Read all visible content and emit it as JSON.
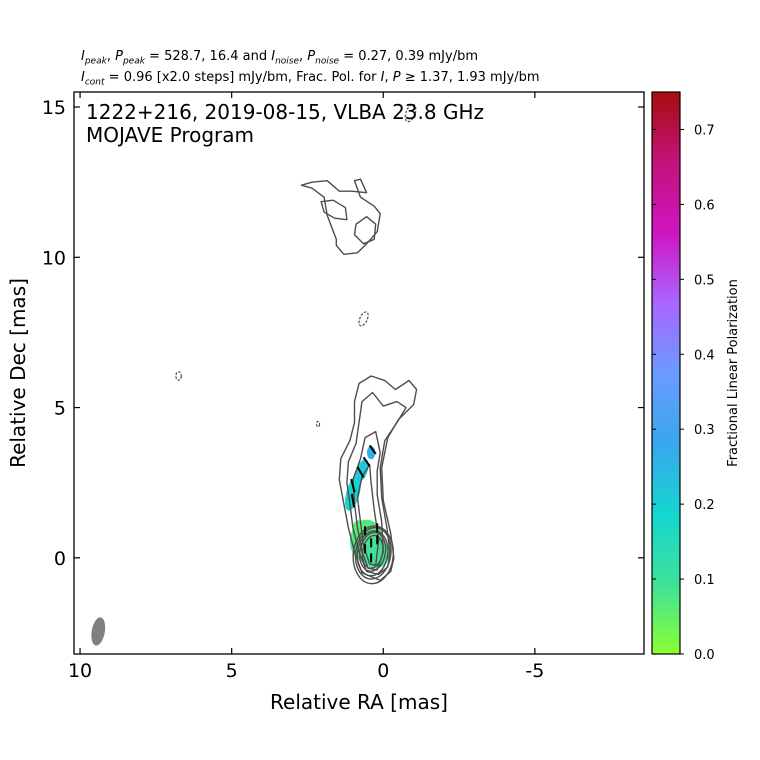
{
  "header": {
    "line1": {
      "i_peak_sym": "I",
      "i_peak_sub": "peak",
      "p_peak_sym": "P",
      "p_peak_sub": "peak",
      "peak_values": " = 528.7, 16.4 and ",
      "i_noise_sym": "I",
      "i_noise_sub": "noise",
      "p_noise_sym": "P",
      "p_noise_sub": "noise",
      "noise_values": " = 0.27, 0.39 mJy/bm"
    },
    "line2": {
      "i_cont_sym": "I",
      "i_cont_sub": "cont",
      "cont_text": " = 0.96 [x2.0 steps] mJy/bm, Frac. Pol. for ",
      "i_sym": "I",
      "p_sym": "P",
      "thresh_text": " ≥ 1.37, 1.93 mJy/bm"
    }
  },
  "chart_data": {
    "type": "contour",
    "title_line1": "1222+216, 2019-08-15, VLBA 23.8 GHz",
    "title_line2": "MOJAVE Program",
    "xlabel": "Relative RA [mas]",
    "ylabel": "Relative Dec [mas]",
    "xlim": [
      10.2,
      -8.6
    ],
    "ylim": [
      -3.2,
      15.5
    ],
    "x_ticks": [
      10,
      5,
      0,
      -5
    ],
    "x_tick_labels": [
      "10",
      "5",
      "0",
      "-5"
    ],
    "y_ticks": [
      0,
      5,
      10,
      15
    ],
    "y_tick_labels": [
      "0",
      "5",
      "10",
      "15"
    ],
    "colorbar": {
      "label": "Fractional Linear Polarization",
      "min": 0.0,
      "max": 0.75,
      "ticks": [
        0.0,
        0.1,
        0.2,
        0.3,
        0.4,
        0.5,
        0.6,
        0.7
      ],
      "tick_labels": [
        "0.0",
        "0.1",
        "0.2",
        "0.3",
        "0.4",
        "0.5",
        "0.6",
        "0.7"
      ],
      "colors": [
        "#8cff32",
        "#3de29a",
        "#14d6d0",
        "#3aa6ee",
        "#6a9bff",
        "#a966ff",
        "#cf15c0",
        "#c2137a",
        "#a80d0d"
      ]
    },
    "beam": {
      "x": 9.4,
      "y": -2.45,
      "major_mas": 0.75,
      "minor_mas": 0.3,
      "pa_deg": -10,
      "color": "#808080"
    },
    "contour_color": "#4d4d4d",
    "core_contours": [
      {
        "x": 0.35,
        "y": 0.2,
        "rx": 0.33,
        "ry": 0.55,
        "rot": 10
      },
      {
        "x": 0.35,
        "y": 0.2,
        "rx": 0.42,
        "ry": 0.65,
        "rot": 10
      },
      {
        "x": 0.35,
        "y": 0.15,
        "rx": 0.5,
        "ry": 0.75,
        "rot": 8
      },
      {
        "x": 0.33,
        "y": 0.15,
        "rx": 0.58,
        "ry": 0.86,
        "rot": 8
      },
      {
        "x": 0.33,
        "y": 0.1,
        "rx": 0.66,
        "ry": 0.96,
        "rot": 5
      }
    ],
    "jet_contours": [
      {
        "points": [
          [
            0.1,
            -0.75
          ],
          [
            -0.25,
            -0.45
          ],
          [
            -0.35,
            0.0
          ],
          [
            -0.25,
            0.8
          ],
          [
            0.0,
            1.9
          ],
          [
            0.05,
            3.0
          ],
          [
            -0.15,
            4.0
          ],
          [
            -0.5,
            4.6
          ],
          [
            -1.0,
            5.1
          ],
          [
            -1.1,
            5.6
          ],
          [
            -0.85,
            5.9
          ],
          [
            -0.4,
            5.6
          ],
          [
            -0.05,
            5.9
          ],
          [
            0.4,
            6.05
          ],
          [
            0.8,
            5.8
          ],
          [
            0.95,
            5.2
          ],
          [
            0.95,
            4.5
          ],
          [
            1.1,
            3.9
          ],
          [
            1.4,
            3.3
          ],
          [
            1.45,
            2.6
          ],
          [
            1.3,
            1.8
          ],
          [
            1.15,
            1.0
          ],
          [
            0.95,
            0.2
          ],
          [
            0.7,
            -0.5
          ]
        ]
      },
      {
        "points": [
          [
            0.15,
            -0.55
          ],
          [
            -0.15,
            -0.3
          ],
          [
            -0.22,
            0.2
          ],
          [
            -0.12,
            1.0
          ],
          [
            0.05,
            2.0
          ],
          [
            0.1,
            3.0
          ],
          [
            -0.05,
            3.9
          ],
          [
            -0.45,
            4.5
          ],
          [
            -0.75,
            5.0
          ],
          [
            -0.45,
            5.2
          ],
          [
            0.0,
            5.05
          ],
          [
            0.35,
            5.5
          ],
          [
            0.7,
            5.2
          ],
          [
            0.8,
            4.5
          ],
          [
            0.9,
            3.8
          ],
          [
            1.15,
            3.2
          ],
          [
            1.2,
            2.5
          ],
          [
            1.1,
            1.8
          ],
          [
            1.0,
            1.0
          ],
          [
            0.8,
            0.2
          ],
          [
            0.55,
            -0.45
          ]
        ]
      },
      {
        "points": [
          [
            0.2,
            -0.4
          ],
          [
            0.0,
            0.2
          ],
          [
            0.05,
            1.2
          ],
          [
            0.2,
            2.1
          ],
          [
            0.2,
            2.9
          ],
          [
            0.1,
            3.5
          ],
          [
            0.25,
            4.2
          ],
          [
            0.6,
            4.0
          ],
          [
            0.75,
            3.3
          ],
          [
            1.0,
            2.6
          ],
          [
            0.95,
            1.8
          ],
          [
            0.85,
            1.0
          ],
          [
            0.7,
            0.2
          ],
          [
            0.5,
            -0.35
          ]
        ]
      },
      {
        "points": [
          [
            0.25,
            -0.25
          ],
          [
            0.15,
            0.6
          ],
          [
            0.3,
            1.6
          ],
          [
            0.4,
            2.5
          ],
          [
            0.45,
            3.1
          ],
          [
            0.7,
            2.7
          ],
          [
            0.85,
            2.0
          ],
          [
            0.75,
            1.2
          ],
          [
            0.65,
            0.4
          ],
          [
            0.45,
            -0.2
          ]
        ]
      }
    ],
    "knot_contours": [
      {
        "points": [
          [
            2.7,
            12.4
          ],
          [
            2.35,
            12.3
          ],
          [
            1.95,
            12.0
          ],
          [
            1.85,
            11.4
          ],
          [
            1.7,
            11.0
          ],
          [
            1.55,
            10.6
          ],
          [
            1.55,
            10.4
          ],
          [
            1.3,
            10.1
          ],
          [
            0.85,
            10.15
          ],
          [
            0.55,
            10.45
          ],
          [
            0.2,
            10.85
          ],
          [
            0.1,
            11.45
          ],
          [
            0.3,
            11.7
          ],
          [
            0.75,
            12.0
          ],
          [
            0.95,
            12.55
          ],
          [
            0.75,
            12.6
          ],
          [
            0.55,
            12.15
          ],
          [
            1.05,
            12.2
          ],
          [
            1.45,
            12.2
          ],
          [
            1.85,
            12.55
          ],
          [
            2.35,
            12.5
          ]
        ]
      },
      {
        "points": [
          [
            2.05,
            11.85
          ],
          [
            1.65,
            11.9
          ],
          [
            1.25,
            11.65
          ],
          [
            1.2,
            11.25
          ],
          [
            1.6,
            11.3
          ],
          [
            1.95,
            11.5
          ]
        ]
      },
      {
        "points": [
          [
            0.9,
            11.1
          ],
          [
            0.55,
            11.35
          ],
          [
            0.25,
            11.1
          ],
          [
            0.3,
            10.6
          ],
          [
            0.65,
            10.45
          ],
          [
            0.95,
            10.75
          ]
        ]
      }
    ],
    "noise_contours": [
      {
        "x": 0.65,
        "y": 7.95,
        "rx": 0.12,
        "ry": 0.25,
        "rot": 25
      },
      {
        "x": 6.75,
        "y": 6.05,
        "rx": 0.09,
        "ry": 0.14,
        "rot": 0
      },
      {
        "x": 2.15,
        "y": 4.45,
        "rx": 0.05,
        "ry": 0.09,
        "rot": 0
      },
      {
        "x": -0.9,
        "y": 14.8,
        "rx": 0.15,
        "ry": 0.3,
        "rot": 20
      }
    ],
    "polarization_patches": [
      {
        "x": 0.55,
        "y": 0.55,
        "rx": 0.55,
        "ry": 0.72,
        "frac": 0.07
      },
      {
        "x": 0.25,
        "y": 0.15,
        "rx": 0.45,
        "ry": 0.5,
        "frac": 0.09
      },
      {
        "x": 0.8,
        "y": 1.05,
        "rx": 0.2,
        "ry": 0.2,
        "frac": 0.06
      },
      {
        "x": 1.0,
        "y": 2.15,
        "rx": 0.22,
        "ry": 0.6,
        "frac": 0.19,
        "rot": 15
      },
      {
        "x": 0.7,
        "y": 2.9,
        "rx": 0.18,
        "ry": 0.4,
        "frac": 0.21,
        "rot": 20
      },
      {
        "x": 0.4,
        "y": 3.5,
        "rx": 0.14,
        "ry": 0.22,
        "frac": 0.26
      }
    ],
    "evpa_ticks": [
      {
        "x": 0.4,
        "y": 0.5,
        "len": 0.3,
        "angle_deg": 90
      },
      {
        "x": 0.6,
        "y": 0.3,
        "len": 0.3,
        "angle_deg": 90
      },
      {
        "x": 0.2,
        "y": 0.6,
        "len": 0.3,
        "angle_deg": 90
      },
      {
        "x": 0.6,
        "y": 0.9,
        "len": 0.3,
        "angle_deg": 90
      },
      {
        "x": 0.2,
        "y": 1.0,
        "len": 0.3,
        "angle_deg": 90
      },
      {
        "x": 0.4,
        "y": 0.0,
        "len": 0.3,
        "angle_deg": 90
      },
      {
        "x": 1.0,
        "y": 1.9,
        "len": 0.45,
        "angle_deg": 100
      },
      {
        "x": 1.0,
        "y": 2.4,
        "len": 0.45,
        "angle_deg": 105
      },
      {
        "x": 0.75,
        "y": 2.85,
        "len": 0.4,
        "angle_deg": 120
      },
      {
        "x": 0.55,
        "y": 3.2,
        "len": 0.35,
        "angle_deg": 125
      },
      {
        "x": 0.35,
        "y": 3.6,
        "len": 0.35,
        "angle_deg": 125
      }
    ]
  }
}
